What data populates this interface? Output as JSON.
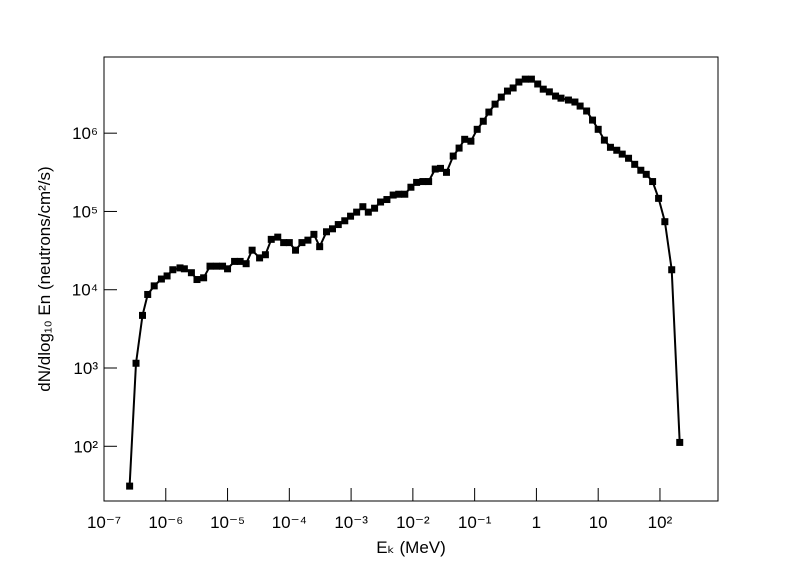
{
  "chart_data": {
    "type": "line",
    "log_x": true,
    "log_y": true,
    "color": "#000000",
    "x_label": "Eₖ (MeV)",
    "y_label": "dN/dlog₁₀ En (neutrons/cm²/s)",
    "xlim": [
      1e-07,
      870
    ],
    "ylim": [
      20,
      9400000.0
    ],
    "xticks": [
      {
        "value": 1e-07,
        "label": "10⁻⁷"
      },
      {
        "value": 1e-06,
        "label": "10⁻⁶"
      },
      {
        "value": 1e-05,
        "label": "10⁻⁵"
      },
      {
        "value": 0.0001,
        "label": "10⁻⁴"
      },
      {
        "value": 0.001,
        "label": "10⁻³"
      },
      {
        "value": 0.01,
        "label": "10⁻²"
      },
      {
        "value": 0.1,
        "label": "10⁻¹"
      },
      1,
      10,
      {
        "value": 100,
        "label": "10²"
      }
    ],
    "yticks": [
      {
        "value": 100,
        "label": "10²"
      },
      {
        "value": 1000,
        "label": "10³"
      },
      {
        "value": 10000,
        "label": "10⁴"
      },
      {
        "value": 100000,
        "label": "10⁵"
      },
      {
        "value": 1000000,
        "label": "10⁶"
      }
    ],
    "x": [
      2.6e-07,
      3.3e-07,
      4.2e-07,
      5.1e-07,
      6.5e-07,
      8.5e-07,
      1.05e-06,
      1.3e-06,
      1.7e-06,
      2e-06,
      2.6e-06,
      3.2e-06,
      4.1e-06,
      5.2e-06,
      6.6e-06,
      8.3e-06,
      1e-05,
      1.3e-05,
      1.6e-05,
      2e-05,
      2.5e-05,
      3.3e-05,
      4.1e-05,
      5.1e-05,
      6.5e-05,
      8.1e-05,
      0.0001,
      0.000126,
      0.00016,
      0.0002,
      0.00025,
      0.00031,
      0.0004,
      0.0005,
      0.00062,
      0.00079,
      0.00098,
      0.00123,
      0.00155,
      0.0019,
      0.0024,
      0.003,
      0.0038,
      0.0048,
      0.0059,
      0.0074,
      0.0093,
      0.0115,
      0.0145,
      0.018,
      0.023,
      0.028,
      0.035,
      0.045,
      0.056,
      0.069,
      0.087,
      0.11,
      0.138,
      0.17,
      0.214,
      0.27,
      0.34,
      0.42,
      0.52,
      0.66,
      0.83,
      1.05,
      1.29,
      1.62,
      2.04,
      2.5,
      3.3,
      4.2,
      5.1,
      6.5,
      8.1,
      10,
      12.6,
      15.8,
      20,
      24.5,
      31,
      39,
      49,
      60,
      76,
      95,
      120,
      155,
      209
    ],
    "values": [
      31,
      1150,
      4700,
      8700,
      11200,
      13700,
      15000,
      18000,
      19000,
      18500,
      16500,
      13500,
      14200,
      20000,
      20000,
      20000,
      18500,
      23000,
      23000,
      21500,
      32000,
      25500,
      28000,
      44000,
      47000,
      40000,
      40000,
      32000,
      40000,
      43000,
      51000,
      35500,
      55000,
      60000,
      68000,
      76000,
      87000,
      98000,
      115000,
      98000,
      110000,
      132000,
      142000,
      162000,
      166000,
      166000,
      204000,
      235000,
      241000,
      241000,
      348000,
      355000,
      316000,
      510000,
      645000,
      835000,
      790000,
      1120000,
      1420000,
      1860000,
      2350000,
      2890000,
      3450000,
      3780000,
      4500000,
      4900000,
      4900000,
      4250000,
      3650000,
      3370000,
      2980000,
      2800000,
      2650000,
      2500000,
      2220000,
      1920000,
      1470000,
      1120000,
      815000,
      660000,
      605000,
      540000,
      478000,
      400000,
      336000,
      298000,
      241000,
      147000,
      74000,
      18000,
      112
    ]
  }
}
